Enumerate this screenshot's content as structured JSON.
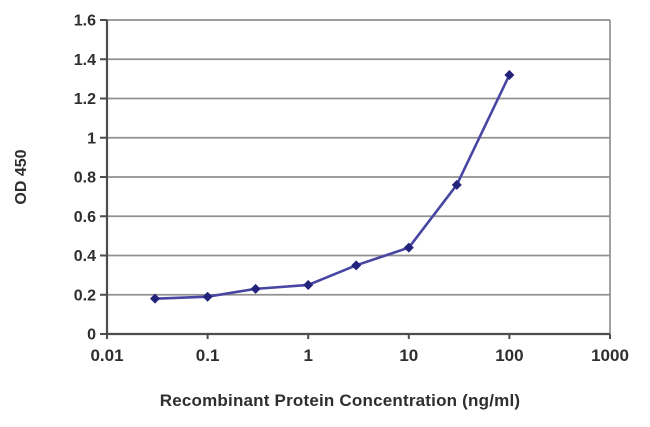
{
  "chart_data": {
    "type": "line",
    "title": "",
    "xlabel": "Recombinant Protein Concentration (ng/ml)",
    "ylabel": "OD 450",
    "x_scale": "log",
    "xlim": [
      0.01,
      1000
    ],
    "ylim": [
      0,
      1.6
    ],
    "x_ticks": [
      0.01,
      0.1,
      1,
      10,
      100,
      1000
    ],
    "x_tick_labels": [
      "0.01",
      "0.1",
      "1",
      "10",
      "100",
      "1000"
    ],
    "y_ticks": [
      0,
      0.2,
      0.4,
      0.6,
      0.8,
      1.0,
      1.2,
      1.4,
      1.6
    ],
    "y_tick_labels": [
      "0",
      "0.2",
      "0.4",
      "0.6",
      "0.8",
      "1",
      "1.2",
      "1.4",
      "1.6"
    ],
    "grid": "horizontal",
    "legend": "none",
    "series": [
      {
        "name": "OD 450",
        "x": [
          0.03,
          0.1,
          0.3,
          1,
          3,
          10,
          30,
          100
        ],
        "y": [
          0.18,
          0.19,
          0.23,
          0.25,
          0.35,
          0.44,
          0.76,
          1.32
        ],
        "marker": "diamond",
        "line_color": "#4747a3",
        "marker_color": "#23237b"
      }
    ],
    "colors": {
      "background": "#ffffff",
      "gridline": "#919191",
      "axis": "#4d4d4d",
      "text": "#2e2e2e"
    }
  }
}
